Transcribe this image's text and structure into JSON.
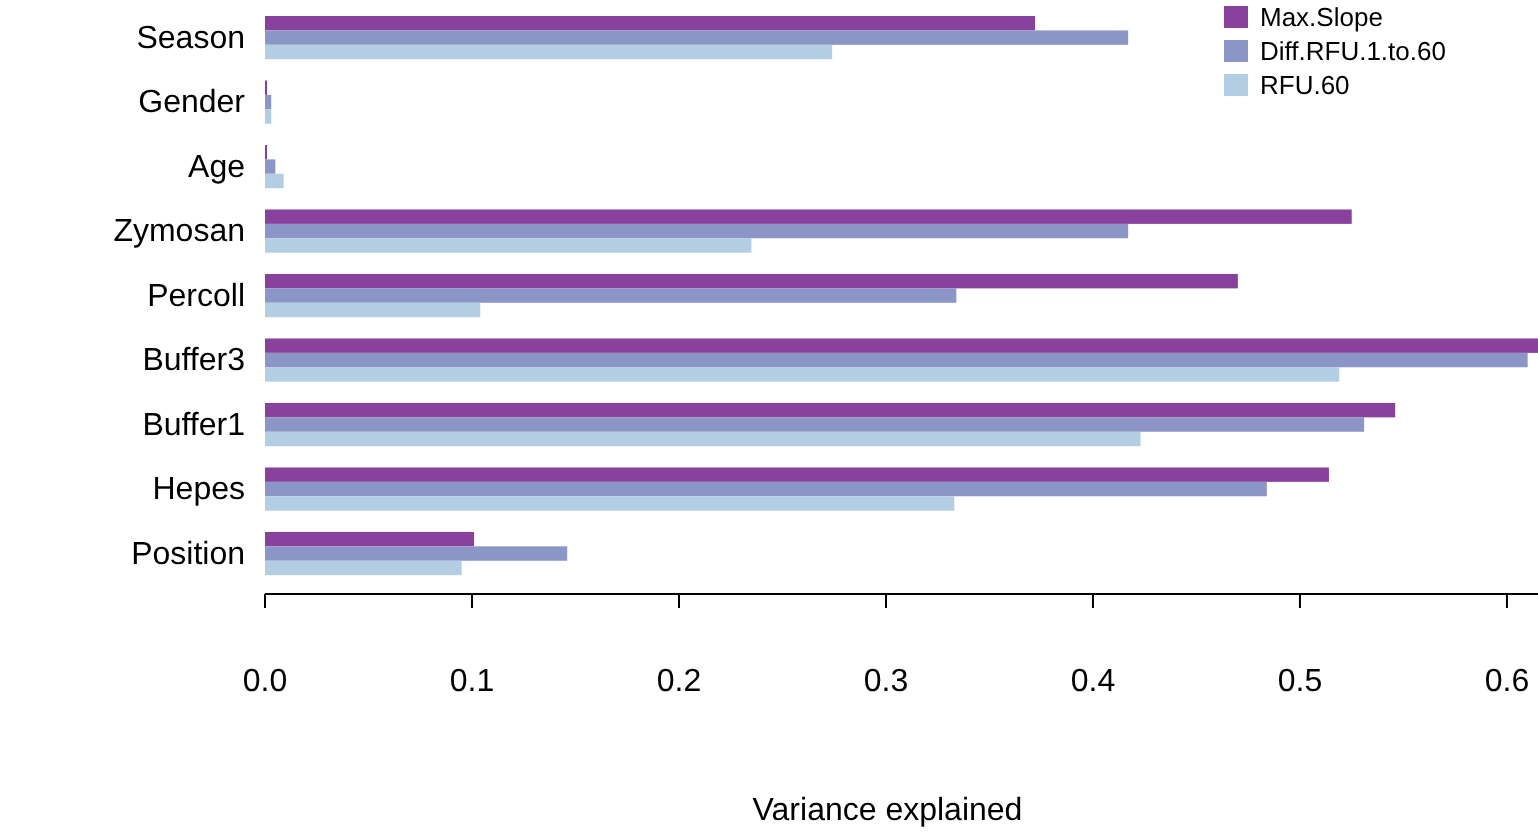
{
  "chart_data": {
    "type": "bar",
    "orientation": "horizontal",
    "xlabel": "Variance explained",
    "categories": [
      "Season",
      "Gender",
      "Age",
      "Zymosan",
      "Percoll",
      "Buffer3",
      "Buffer1",
      "Hepes",
      "Position"
    ],
    "series": [
      {
        "name": "Max.Slope",
        "color": "#88419d",
        "values": [
          0.372,
          0.001,
          0.001,
          0.525,
          0.47,
          0.615,
          0.546,
          0.514,
          0.101
        ]
      },
      {
        "name": "Diff.RFU.1.to.60",
        "color": "#8c96c6",
        "values": [
          0.417,
          0.003,
          0.005,
          0.417,
          0.334,
          0.61,
          0.531,
          0.484,
          0.146
        ]
      },
      {
        "name": "RFU.60",
        "color": "#b3cde3",
        "values": [
          0.274,
          0.003,
          0.009,
          0.235,
          0.104,
          0.519,
          0.423,
          0.333,
          0.095
        ]
      }
    ],
    "xlim": [
      0,
      0.615
    ],
    "xticks": [
      {
        "value": 0,
        "label": "0.0"
      },
      0.1,
      0.2,
      0.3,
      0.4,
      0.5,
      0.6
    ],
    "grid": false,
    "legend": "top right"
  }
}
